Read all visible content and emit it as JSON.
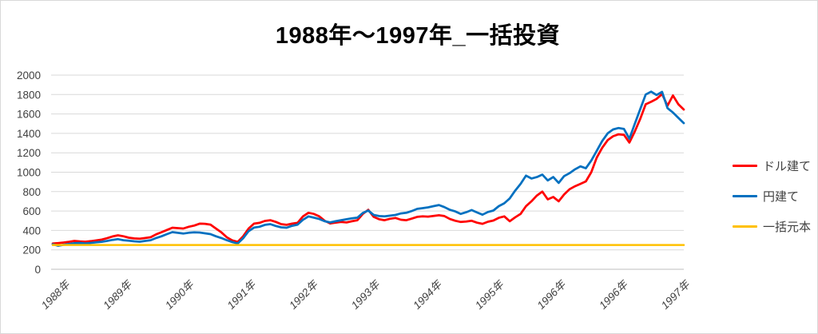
{
  "title": "1988年～1997年_一括投資",
  "legend": [
    {
      "label": "ドル建て"
    },
    {
      "label": "円建て"
    },
    {
      "label": "一括元本"
    }
  ],
  "colors": {
    "dollar": "#FF0000",
    "yen": "#0070C0",
    "principal": "#FFC000",
    "gridline": "#D9D9D9",
    "axis_text": "#404040"
  },
  "chart_data": {
    "type": "line",
    "title": "1988年～1997年_一括投資",
    "x_tick_labels": [
      "1988年",
      "1989年",
      "1990年",
      "1991年",
      "1992年",
      "1993年",
      "1994年",
      "1995年",
      "1996年",
      "1996年",
      "1997年"
    ],
    "y_ticks": [
      0,
      200,
      400,
      600,
      800,
      1000,
      1200,
      1400,
      1600,
      1800,
      2000
    ],
    "ylim": [
      0,
      2000
    ],
    "grid": "horizontal",
    "legend_position": "right",
    "series": [
      {
        "name": "ドル建て",
        "key": "dollar",
        "color": "#FF0000",
        "values": [
          265,
          270,
          276,
          283,
          292,
          287,
          284,
          290,
          298,
          305,
          320,
          338,
          350,
          340,
          325,
          318,
          314,
          322,
          330,
          360,
          382,
          405,
          428,
          424,
          420,
          438,
          450,
          470,
          468,
          460,
          420,
          380,
          330,
          298,
          282,
          340,
          420,
          470,
          478,
          498,
          505,
          488,
          465,
          458,
          470,
          478,
          545,
          582,
          570,
          545,
          500,
          472,
          480,
          487,
          482,
          495,
          505,
          570,
          612,
          540,
          515,
          505,
          520,
          528,
          510,
          505,
          522,
          540,
          545,
          542,
          550,
          556,
          548,
          518,
          500,
          487,
          492,
          500,
          480,
          468,
          490,
          502,
          530,
          545,
          495,
          535,
          570,
          650,
          700,
          760,
          800,
          720,
          745,
          700,
          770,
          825,
          855,
          880,
          905,
          1000,
          1150,
          1250,
          1330,
          1370,
          1390,
          1385,
          1305,
          1420,
          1550,
          1700,
          1725,
          1755,
          1805,
          1685,
          1790,
          1700,
          1645
        ]
      },
      {
        "name": "円建て",
        "key": "yen",
        "color": "#0070C0",
        "values": [
          258,
          243,
          252,
          262,
          268,
          272,
          266,
          272,
          278,
          283,
          292,
          303,
          310,
          300,
          295,
          288,
          284,
          292,
          300,
          322,
          340,
          362,
          383,
          375,
          368,
          376,
          380,
          379,
          370,
          362,
          340,
          322,
          300,
          281,
          266,
          320,
          393,
          430,
          438,
          458,
          465,
          446,
          432,
          428,
          448,
          460,
          510,
          545,
          532,
          518,
          495,
          482,
          495,
          505,
          515,
          525,
          532,
          580,
          605,
          560,
          548,
          545,
          552,
          560,
          575,
          582,
          600,
          622,
          630,
          638,
          650,
          662,
          640,
          612,
          596,
          570,
          588,
          610,
          585,
          562,
          590,
          605,
          650,
          680,
          730,
          810,
          880,
          965,
          935,
          950,
          975,
          915,
          950,
          890,
          960,
          990,
          1030,
          1060,
          1040,
          1120,
          1220,
          1320,
          1400,
          1440,
          1455,
          1445,
          1345,
          1500,
          1650,
          1800,
          1830,
          1795,
          1828,
          1660,
          1615,
          1560,
          1505
        ]
      },
      {
        "name": "一括元本",
        "key": "principal",
        "color": "#FFC000",
        "values": [
          250,
          250
        ]
      }
    ]
  }
}
